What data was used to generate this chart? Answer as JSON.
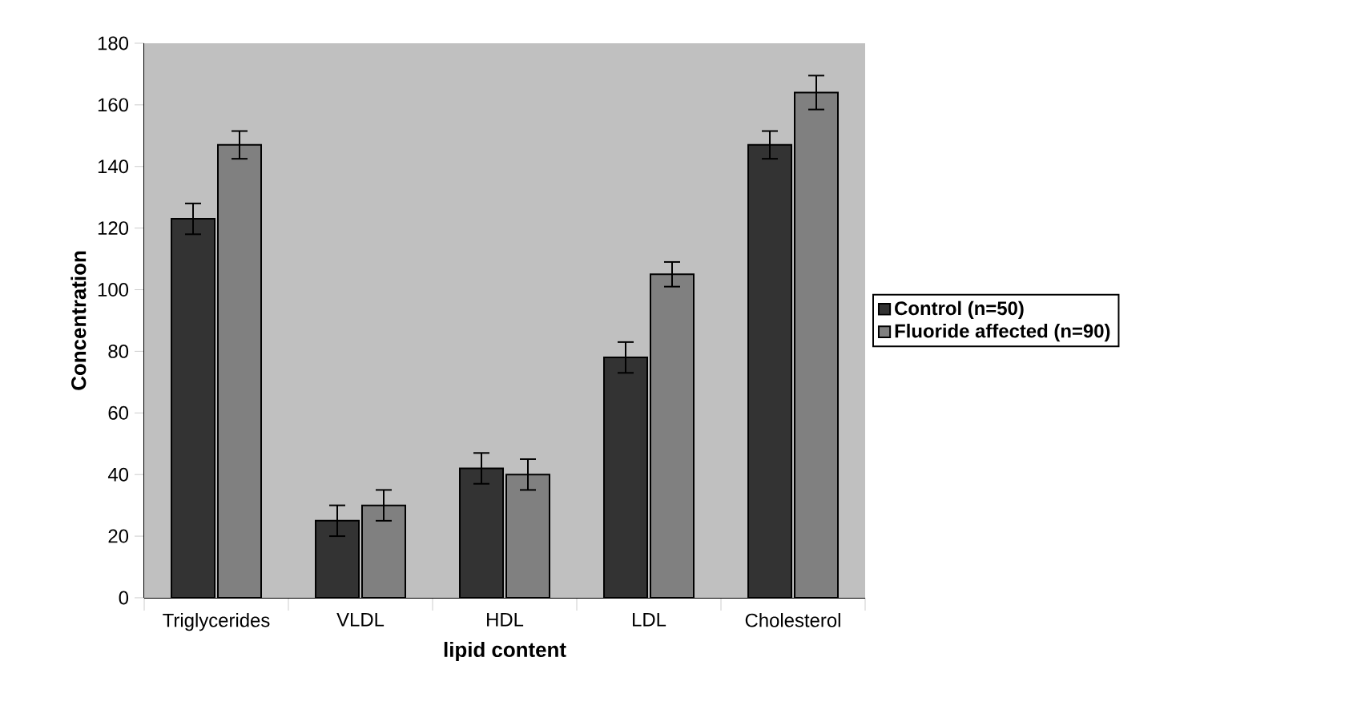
{
  "chart_data": {
    "type": "bar",
    "xlabel": "lipid content",
    "ylabel": "Concentration",
    "categories": [
      "Triglycerides",
      "VLDL",
      "HDL",
      "LDL",
      "Cholesterol"
    ],
    "series": [
      {
        "name": "Control (n=50)",
        "color": "#333333",
        "values": [
          123,
          25,
          42,
          78,
          147
        ],
        "errors": [
          5,
          5,
          5,
          5,
          4.5
        ]
      },
      {
        "name": "Fluoride affected (n=90)",
        "color": "#808080",
        "values": [
          147,
          30,
          40,
          105,
          164
        ],
        "errors": [
          4.5,
          5,
          5,
          4,
          5.5
        ]
      }
    ],
    "ylim": [
      0,
      180
    ],
    "yticks": [
      0,
      20,
      40,
      60,
      80,
      100,
      120,
      140,
      160,
      180
    ],
    "grid": false,
    "legend": "right"
  }
}
